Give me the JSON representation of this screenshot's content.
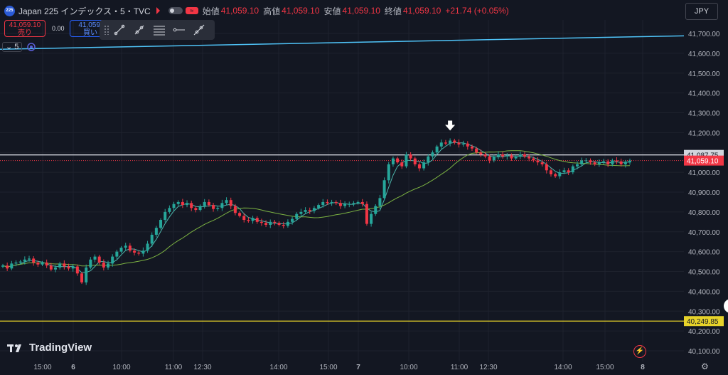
{
  "header": {
    "badge": "225",
    "title": "Japan 225 インデックス・5・TVC",
    "ohlc": [
      {
        "label": "始値",
        "value": "41,059.10"
      },
      {
        "label": "高値",
        "value": "41,059.10"
      },
      {
        "label": "安値",
        "value": "41,059.10"
      },
      {
        "label": "終値",
        "value": "41,059.10"
      }
    ],
    "change": "+21.74 (+0.05%)",
    "currency": "JPY"
  },
  "trade": {
    "sell_price": "41,059.10",
    "sell_label": "売り",
    "buy_price": "41,059.",
    "buy_label": "買い",
    "spread": "0.00"
  },
  "interval": {
    "value": "5"
  },
  "logo": {
    "text": "TradingView"
  },
  "colors": {
    "background": "#131722",
    "up": "#26a69a",
    "down": "#f23645",
    "ma_fast": "#4db6ac",
    "ma_slow": "#7cb342",
    "trendline": "#4fc3f7",
    "hline_white": "#d1d4dc",
    "hline_yellow": "#e7d32a",
    "grid": "#1e222d"
  },
  "chart_data": {
    "type": "candlestick",
    "y_ticks": [
      "41,700.00",
      "41,600.00",
      "41,500.00",
      "41,400.00",
      "41,300.00",
      "41,200.00",
      "41,100.00",
      "41,000.00",
      "40,900.00",
      "40,800.00",
      "40,700.00",
      "40,600.00",
      "40,500.00",
      "40,400.00",
      "40,300.00",
      "40,200.00",
      "40,100.00"
    ],
    "ylim": [
      40050,
      41780
    ],
    "x_ticks": [
      "15:00",
      "6",
      "10:00",
      "11:00",
      "12:30",
      "14:00",
      "15:00",
      "7",
      "10:00",
      "11:00",
      "12:30",
      "14:00",
      "15:00",
      "8"
    ],
    "grid": true,
    "horizontal_lines": [
      {
        "value": 41087.75,
        "label": "41,087.75",
        "color": "#d1d4dc"
      },
      {
        "value": 40249.85,
        "label": "40,249.85",
        "color": "#e7d32a"
      }
    ],
    "current_price": {
      "value": 41059.1,
      "label": "41,059.10"
    },
    "trendline": {
      "from": 41620,
      "to": 41688
    },
    "closes": [
      40530,
      40515,
      40540,
      40545,
      40550,
      40560,
      40565,
      40545,
      40535,
      40545,
      40530,
      40510,
      40520,
      40540,
      40525,
      40515,
      40525,
      40490,
      40445,
      40520,
      40560,
      40575,
      40545,
      40520,
      40540,
      40575,
      40600,
      40620,
      40630,
      40605,
      40595,
      40590,
      40605,
      40640,
      40685,
      40720,
      40760,
      40800,
      40820,
      40840,
      40850,
      40835,
      40845,
      40820,
      40810,
      40830,
      40850,
      40835,
      40815,
      40820,
      40845,
      40860,
      40830,
      40795,
      40780,
      40760,
      40755,
      40770,
      40750,
      40745,
      40735,
      40750,
      40745,
      40735,
      40730,
      40750,
      40765,
      40790,
      40800,
      40810,
      40805,
      40820,
      40835,
      40850,
      40845,
      40850,
      40845,
      40830,
      40840,
      40840,
      40845,
      40850,
      40840,
      40740,
      40790,
      40830,
      40870,
      40960,
      41040,
      41070,
      41050,
      41030,
      41090,
      41070,
      41040,
      41020,
      41050,
      41080,
      41100,
      41130,
      41150,
      41145,
      41160,
      41150,
      41140,
      41145,
      41130,
      41120,
      41100,
      41090,
      41080,
      41060,
      41080,
      41090,
      41080,
      41085,
      41070,
      41080,
      41090,
      41080,
      41070,
      41060,
      41050,
      41040,
      41010,
      40990,
      40980,
      41000,
      41010,
      41000,
      41030,
      41040,
      41060,
      41060,
      41050,
      41040,
      41050,
      41055,
      41040,
      41060,
      41055,
      41040,
      41050,
      41059
    ]
  }
}
